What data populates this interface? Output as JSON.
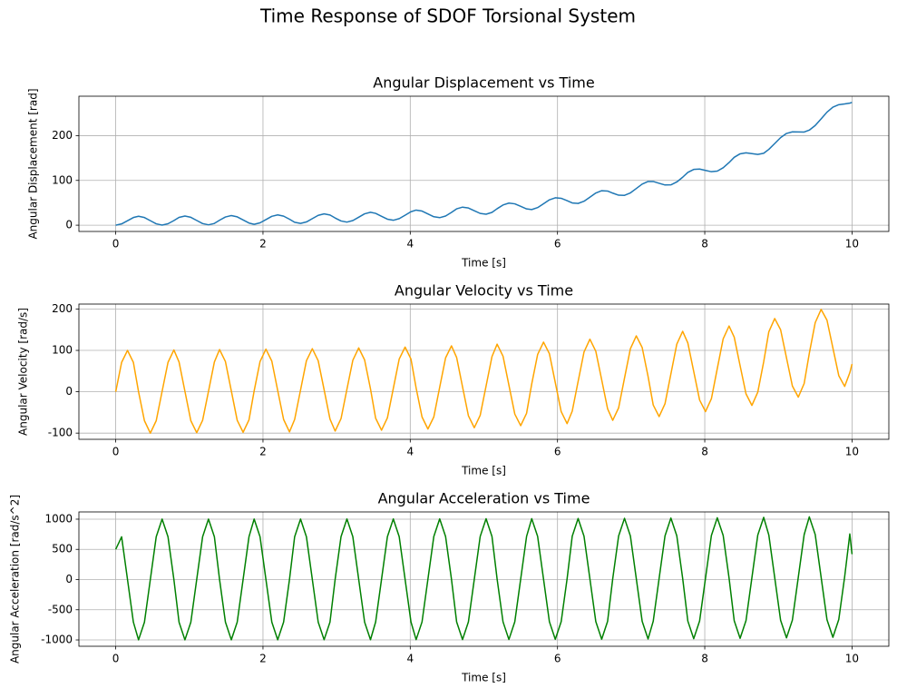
{
  "title": "Time Response of SDOF Torsional System",
  "chart_data": [
    {
      "type": "line",
      "title": "Angular Displacement vs Time",
      "x_label": "Time [s]",
      "y_label": "Angular Displacement [rad]",
      "x": [
        0,
        0.08,
        0.16,
        0.24,
        0.31,
        0.39,
        0.47,
        0.55,
        0.63,
        0.71,
        0.79,
        0.86,
        0.94,
        1.02,
        1.1,
        1.18,
        1.26,
        1.34,
        1.41,
        1.49,
        1.57,
        1.65,
        1.73,
        1.81,
        1.88,
        1.96,
        2.04,
        2.12,
        2.2,
        2.28,
        2.36,
        2.43,
        2.51,
        2.59,
        2.67,
        2.75,
        2.83,
        2.91,
        2.98,
        3.06,
        3.14,
        3.22,
        3.3,
        3.38,
        3.46,
        3.53,
        3.61,
        3.69,
        3.77,
        3.85,
        3.93,
        4.01,
        4.08,
        4.16,
        4.24,
        4.32,
        4.4,
        4.48,
        4.56,
        4.63,
        4.71,
        4.79,
        4.87,
        4.95,
        5.03,
        5.11,
        5.18,
        5.26,
        5.34,
        5.42,
        5.5,
        5.58,
        5.65,
        5.73,
        5.81,
        5.89,
        5.97,
        6.05,
        6.13,
        6.2,
        6.28,
        6.36,
        6.44,
        6.52,
        6.6,
        6.68,
        6.75,
        6.83,
        6.91,
        6.99,
        7.07,
        7.15,
        7.23,
        7.3,
        7.38,
        7.46,
        7.54,
        7.62,
        7.7,
        7.77,
        7.85,
        7.93,
        8.01,
        8.09,
        8.17,
        8.25,
        8.33,
        8.4,
        8.48,
        8.56,
        8.64,
        8.72,
        8.8,
        8.87,
        8.95,
        9.03,
        9.11,
        9.19,
        9.27,
        9.35,
        9.42,
        9.5,
        9.58,
        9.66,
        9.74,
        9.82,
        9.9,
        9.97,
        10
      ],
      "values": [
        0,
        2.9,
        10.0,
        17.1,
        20.0,
        17.1,
        10.1,
        3.1,
        0.2,
        3.2,
        10.3,
        17.4,
        20.4,
        17.6,
        10.6,
        3.6,
        0.8,
        3.9,
        11.1,
        18.3,
        21.4,
        18.6,
        11.7,
        4.8,
        2.0,
        5.2,
        12.5,
        19.8,
        22.9,
        20.2,
        13.4,
        6.6,
        4.0,
        7.2,
        14.6,
        22.0,
        25.3,
        22.8,
        16.1,
        9.4,
        6.9,
        10.3,
        17.8,
        25.4,
        28.8,
        26.4,
        19.9,
        13.4,
        11.0,
        14.6,
        22.3,
        30.1,
        33.7,
        31.5,
        25.2,
        18.9,
        16.8,
        20.5,
        28.5,
        36.5,
        40.3,
        38.4,
        32.3,
        26.3,
        24.5,
        28.6,
        36.8,
        45.1,
        49.3,
        47.7,
        42.0,
        36.3,
        34.9,
        39.3,
        47.9,
        56.6,
        61.2,
        60.0,
        54.8,
        49.6,
        48.6,
        53.5,
        62.6,
        71.8,
        77.0,
        76.3,
        71.6,
        67.0,
        66.6,
        72.1,
        81.9,
        91.8,
        97.6,
        97.6,
        93.6,
        89.8,
        90.1,
        96.5,
        107.1,
        117.8,
        124.5,
        125.4,
        122.3,
        119.4,
        120.8,
        128.2,
        139.8,
        151.6,
        159.4,
        161.5,
        159.7,
        158.0,
        160.6,
        169.3,
        182.3,
        195.5,
        204.8,
        208.4,
        208.1,
        208.0,
        212.3,
        222.6,
        237.4,
        252.4,
        263.5,
        269.0,
        270.7,
        272.6,
        274.2
      ],
      "color": "#1f77b4",
      "xlim": [
        -0.5,
        10.5
      ],
      "ylim": [
        -14,
        288
      ],
      "xticks": [
        0,
        2,
        4,
        6,
        8,
        10
      ],
      "yticks": [
        0,
        100,
        200
      ],
      "grid": true
    },
    {
      "type": "line",
      "title": "Angular Velocity vs Time",
      "x_label": "Time [s]",
      "y_label": "Angular Velocity [rad/s]",
      "x": [
        0,
        0.08,
        0.16,
        0.24,
        0.31,
        0.39,
        0.47,
        0.55,
        0.63,
        0.71,
        0.79,
        0.86,
        0.94,
        1.02,
        1.1,
        1.18,
        1.26,
        1.34,
        1.41,
        1.49,
        1.57,
        1.65,
        1.73,
        1.81,
        1.88,
        1.96,
        2.04,
        2.12,
        2.2,
        2.28,
        2.36,
        2.43,
        2.51,
        2.59,
        2.67,
        2.75,
        2.83,
        2.91,
        2.98,
        3.06,
        3.14,
        3.22,
        3.3,
        3.38,
        3.46,
        3.53,
        3.61,
        3.69,
        3.77,
        3.85,
        3.93,
        4.01,
        4.08,
        4.16,
        4.24,
        4.32,
        4.4,
        4.48,
        4.56,
        4.63,
        4.71,
        4.79,
        4.87,
        4.95,
        5.03,
        5.11,
        5.18,
        5.26,
        5.34,
        5.42,
        5.5,
        5.58,
        5.65,
        5.73,
        5.81,
        5.89,
        5.97,
        6.05,
        6.13,
        6.2,
        6.28,
        6.36,
        6.44,
        6.52,
        6.6,
        6.68,
        6.75,
        6.83,
        6.91,
        6.99,
        7.07,
        7.15,
        7.23,
        7.3,
        7.38,
        7.46,
        7.54,
        7.62,
        7.7,
        7.77,
        7.85,
        7.93,
        8.01,
        8.09,
        8.17,
        8.25,
        8.33,
        8.4,
        8.48,
        8.56,
        8.64,
        8.72,
        8.8,
        8.87,
        8.95,
        9.03,
        9.11,
        9.19,
        9.27,
        9.35,
        9.42,
        9.5,
        9.58,
        9.66,
        9.74,
        9.82,
        9.9,
        9.97,
        10
      ],
      "values": [
        0,
        71,
        100,
        71,
        0,
        -70,
        -100,
        -70,
        1,
        71,
        101,
        72,
        1,
        -70,
        -99,
        -69,
        1,
        72,
        102,
        73,
        2,
        -69,
        -98,
        -68,
        2,
        73,
        103,
        74,
        3,
        -67,
        -97,
        -67,
        4,
        75,
        104,
        75,
        5,
        -66,
        -95,
        -65,
        6,
        76,
        106,
        77,
        7,
        -64,
        -93,
        -63,
        8,
        79,
        108,
        79,
        9,
        -61,
        -90,
        -61,
        11,
        82,
        111,
        83,
        12,
        -58,
        -87,
        -57,
        14,
        85,
        115,
        86,
        16,
        -54,
        -82,
        -52,
        19,
        90,
        120,
        92,
        22,
        -48,
        -77,
        -47,
        25,
        96,
        127,
        98,
        29,
        -41,
        -69,
        -39,
        33,
        104,
        135,
        107,
        37,
        -32,
        -60,
        -29,
        43,
        115,
        146,
        118,
        49,
        -20,
        -48,
        -17,
        56,
        128,
        159,
        132,
        63,
        -5,
        -33,
        -1,
        72,
        145,
        177,
        150,
        82,
        14,
        -13,
        20,
        93,
        167,
        199,
        173,
        106,
        39,
        13,
        46,
        67
      ],
      "color": "#ffa500",
      "xlim": [
        -0.5,
        10.5
      ],
      "ylim": [
        -115,
        212
      ],
      "xticks": [
        0,
        2,
        4,
        6,
        8,
        10
      ],
      "yticks": [
        -100,
        0,
        100,
        200
      ],
      "grid": true
    },
    {
      "type": "line",
      "title": "Angular Acceleration vs Time",
      "x_label": "Time [s]",
      "y_label": "Angular Acceleration [rad/s^2]",
      "x": [
        0,
        0.08,
        0.16,
        0.24,
        0.31,
        0.39,
        0.47,
        0.55,
        0.63,
        0.71,
        0.79,
        0.86,
        0.94,
        1.02,
        1.1,
        1.18,
        1.26,
        1.34,
        1.41,
        1.49,
        1.57,
        1.65,
        1.73,
        1.81,
        1.88,
        1.96,
        2.04,
        2.12,
        2.2,
        2.28,
        2.36,
        2.43,
        2.51,
        2.59,
        2.67,
        2.75,
        2.83,
        2.91,
        2.98,
        3.06,
        3.14,
        3.22,
        3.3,
        3.38,
        3.46,
        3.53,
        3.61,
        3.69,
        3.77,
        3.85,
        3.93,
        4.01,
        4.08,
        4.16,
        4.24,
        4.32,
        4.4,
        4.48,
        4.56,
        4.63,
        4.71,
        4.79,
        4.87,
        4.95,
        5.03,
        5.11,
        5.18,
        5.26,
        5.34,
        5.42,
        5.5,
        5.58,
        5.65,
        5.73,
        5.81,
        5.89,
        5.97,
        6.05,
        6.13,
        6.2,
        6.28,
        6.36,
        6.44,
        6.52,
        6.6,
        6.68,
        6.75,
        6.83,
        6.91,
        6.99,
        7.07,
        7.15,
        7.23,
        7.3,
        7.38,
        7.46,
        7.54,
        7.62,
        7.7,
        7.77,
        7.85,
        7.93,
        8.01,
        8.09,
        8.17,
        8.25,
        8.33,
        8.4,
        8.48,
        8.56,
        8.64,
        8.72,
        8.8,
        8.87,
        8.95,
        9.03,
        9.11,
        9.19,
        9.27,
        9.35,
        9.42,
        9.5,
        9.58,
        9.66,
        9.74,
        9.82,
        9.9,
        9.97,
        10
      ],
      "values": [
        500,
        708,
        1,
        -706,
        -999,
        -706,
        1,
        708,
        1001,
        708,
        1,
        -706,
        -999,
        -706,
        1,
        708,
        1001,
        709,
        2,
        -705,
        -998,
        -705,
        2,
        709,
        1002,
        709,
        2,
        -705,
        -998,
        -705,
        2,
        709,
        1002,
        709,
        3,
        -704,
        -997,
        -704,
        3,
        710,
        1003,
        710,
        3,
        -704,
        -996,
        -703,
        4,
        711,
        1004,
        711,
        4,
        -703,
        -995,
        -702,
        5,
        712,
        1005,
        712,
        5,
        -701,
        -994,
        -701,
        6,
        713,
        1007,
        714,
        7,
        -700,
        -993,
        -699,
        8,
        715,
        1008,
        716,
        9,
        -698,
        -990,
        -697,
        10,
        718,
        1011,
        718,
        12,
        -695,
        -988,
        -694,
        13,
        721,
        1014,
        721,
        15,
        -692,
        -984,
        -691,
        17,
        724,
        1018,
        726,
        19,
        -687,
        -980,
        -686,
        22,
        729,
        1023,
        731,
        25,
        -682,
        -974,
        -680,
        28,
        736,
        1030,
        738,
        32,
        -674,
        -966,
        -672,
        36,
        744,
        1038,
        746,
        41,
        -665,
        -957,
        -662,
        46,
        755,
        420
      ],
      "color": "#008000",
      "xlim": [
        -0.5,
        10.5
      ],
      "ylim": [
        -1105,
        1120
      ],
      "xticks": [
        0,
        2,
        4,
        6,
        8,
        10
      ],
      "yticks": [
        -1000,
        -500,
        0,
        500,
        1000
      ],
      "grid": true
    }
  ]
}
